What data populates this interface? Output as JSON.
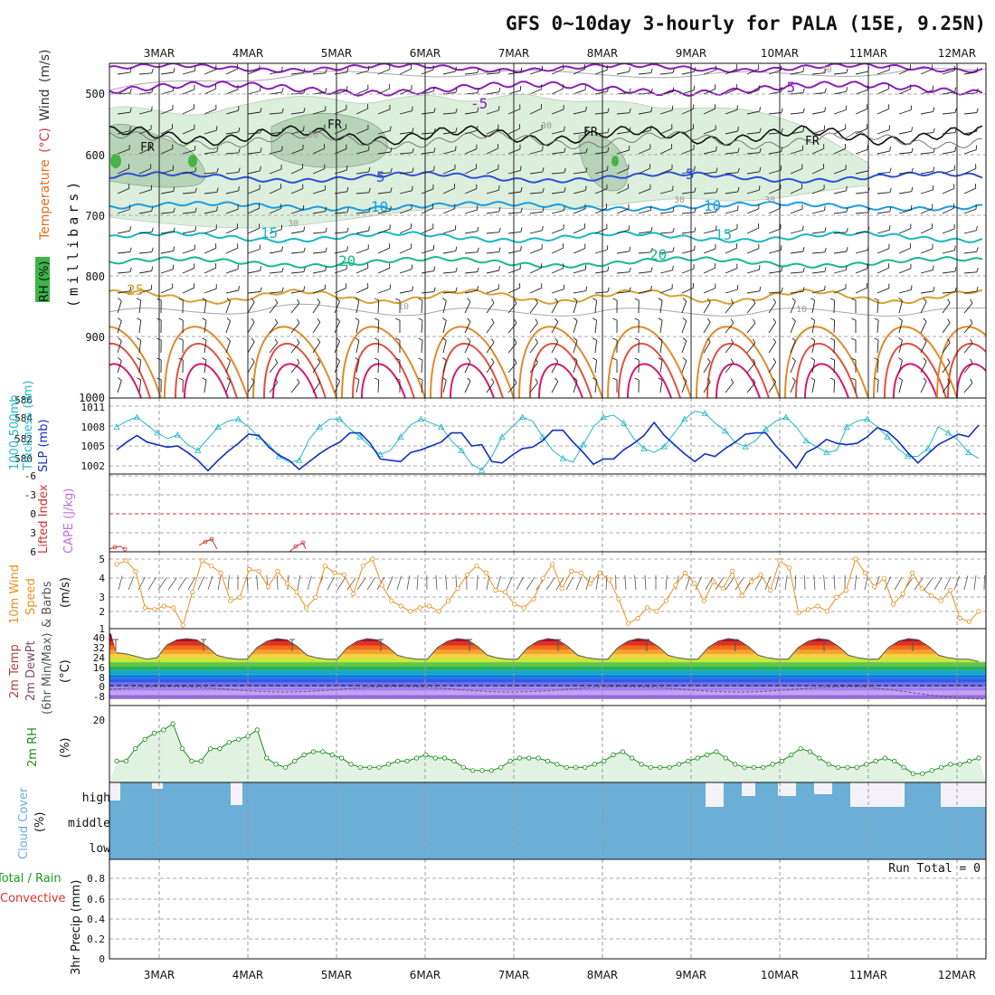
{
  "title": "GFS 0~10day 3-hourly for PALA (15E, 9.25N)",
  "dates": [
    "3MAR",
    "4MAR",
    "5MAR",
    "6MAR",
    "7MAR",
    "8MAR",
    "9MAR",
    "10MAR",
    "11MAR",
    "12MAR"
  ],
  "colors": {
    "slp": "#1030c0",
    "thickness": "#20b8c8",
    "wind": "#e8901c",
    "rh2m": "#1a8c1a",
    "cloud": "#6baed6",
    "lifted": "#d03030",
    "rh_fill": "#dcefdc"
  },
  "panels": {
    "upper": {
      "ylabels": [
        "Temperature",
        "(°C)",
        "Wind",
        "(m/s)"
      ],
      "rh_label": "RH (%)",
      "unit": "(millibars)",
      "yticks": [
        "500",
        "600",
        "700",
        "800",
        "900",
        "1000"
      ],
      "labels": {
        "fr1": "FR",
        "fr2": "FR",
        "fr3": "FR",
        "fr4": "FR",
        "m5a": "-5",
        "m5b": "-5",
        "p5a": "5",
        "p5b": "5",
        "p10a": "10",
        "p10b": "10",
        "p15a": "15",
        "p15b": "15",
        "p20a": "20",
        "p20b": "20",
        "p25": "25",
        "r30a": "30",
        "r30b": "30",
        "r30c": "30",
        "r30d": "30",
        "r30e": "30",
        "r10a": "10",
        "r10b": "10",
        "r10c": "10"
      }
    },
    "slp": {
      "label_left": "1000-500mb",
      "label_left2": "Thickness (dm)",
      "label_right": "SLP (mb)",
      "left_ticks": [
        "586",
        "584",
        "582",
        "580"
      ],
      "right_ticks": [
        "1011",
        "1008",
        "1005",
        "1002"
      ]
    },
    "cape": {
      "label_lifted": "Lifted Index",
      "label_cape": "CAPE (J/kg)",
      "ticks": [
        "-6",
        "-3",
        "0",
        "3",
        "6"
      ]
    },
    "wind": {
      "label1": "10m Wind",
      "label2": "Speed",
      "label3": "& Barbs",
      "unit": "(m/s)",
      "ticks": [
        "5",
        "4",
        "3",
        "2",
        "1"
      ]
    },
    "temp": {
      "label1": "2m Temp",
      "label2": "2m DewPt",
      "label3": "(6hr Min/Max)",
      "unit": "(°C)",
      "ticks": [
        "40",
        "32",
        "24",
        "16",
        "8",
        "0",
        "-8"
      ]
    },
    "rh": {
      "label": "2m RH",
      "unit": "(%)",
      "ticks": [
        "20"
      ]
    },
    "cloud": {
      "label": "Cloud Cover",
      "unit": "(%)",
      "levels": [
        "high",
        "middle",
        "low"
      ]
    },
    "precip": {
      "label1": "Total / Rain",
      "label2": "Convective",
      "label3": "3hr Precip (mm)",
      "run_total": "Run Total = 0",
      "ticks": [
        "0.8",
        "0.6",
        "0.4",
        "0.2",
        "0"
      ]
    }
  },
  "chart_data": [
    {
      "type": "line",
      "title": "1000-500mb Thickness (dm)",
      "series": [
        {
          "name": "1000-500mb Thickness (dm)",
          "y_units": "dm",
          "values": [
            583.6,
            584.2,
            584.6,
            583.8,
            583.0,
            582.4,
            582.8,
            581.8,
            581.2,
            582.4,
            583.6,
            584.2,
            584.4,
            583.6,
            582.6,
            581.8,
            580.6,
            580.0,
            580.2,
            582.4,
            583.6,
            584.4,
            584.4,
            583.4,
            582.6,
            581.6,
            580.8,
            581.2,
            582.6,
            583.8,
            584.4,
            584.0,
            583.6,
            582.2,
            581.2,
            579.8,
            579.2,
            580.6,
            582.6,
            583.6,
            584.6,
            584.2,
            582.6,
            581.2,
            580.4,
            580.0,
            581.8,
            583.6,
            584.6,
            584.8,
            584.0,
            582.4,
            581.4,
            581.0,
            581.6,
            583.0,
            584.4,
            585.2,
            585.0,
            584.0,
            583.2,
            582.0,
            581.6,
            582.2,
            583.4,
            584.2,
            584.6,
            583.6,
            582.2,
            581.6,
            581.0,
            581.2,
            583.6,
            584.2,
            584.4,
            583.6,
            582.6,
            581.4,
            580.6,
            580.6,
            581.4,
            583.6,
            583.0,
            582.2,
            581.0,
            580.4
          ]
        }
      ]
    },
    {
      "type": "line",
      "title": "SLP (mb)",
      "series": [
        {
          "name": "SLP (mb)",
          "y_units": "mb",
          "values": [
            1005.0,
            1006.2,
            1007.2,
            1006.2,
            1005.8,
            1005.4,
            1005.6,
            1004.6,
            1003.4,
            1001.8,
            1003.4,
            1004.8,
            1006.0,
            1007.4,
            1007.2,
            1005.4,
            1004.2,
            1003.4,
            1002.0,
            1003.2,
            1004.4,
            1005.4,
            1006.2,
            1007.6,
            1007.6,
            1006.0,
            1003.6,
            1003.4,
            1003.2,
            1004.6,
            1005.0,
            1005.6,
            1006.2,
            1007.6,
            1007.6,
            1005.6,
            1005.8,
            1003.2,
            1003.0,
            1004.2,
            1005.2,
            1005.4,
            1006.4,
            1008.0,
            1008.0,
            1006.2,
            1004.6,
            1002.8,
            1003.6,
            1003.6,
            1005.0,
            1006.0,
            1007.2,
            1009.2,
            1007.2,
            1005.8,
            1004.4,
            1003.2,
            1004.4,
            1004.0,
            1005.2,
            1006.2,
            1007.4,
            1007.6,
            1007.6,
            1005.6,
            1004.0,
            1002.2,
            1004.6,
            1005.4,
            1006.6,
            1006.0,
            1005.8,
            1006.0,
            1007.0,
            1008.4,
            1007.8,
            1006.4,
            1004.6,
            1003.0,
            1004.4,
            1005.8,
            1006.6,
            1007.4,
            1007.0,
            1008.8
          ]
        }
      ]
    },
    {
      "type": "line",
      "title": "10m Wind Speed (m/s)",
      "series": [
        {
          "name": "10m Wind Speed",
          "y_units": "m/s",
          "values": [
            4.7,
            4.9,
            4.3,
            2.2,
            2.1,
            2.3,
            2.2,
            1.2,
            3.1,
            4.9,
            4.6,
            4.2,
            2.6,
            2.8,
            4.4,
            4.3,
            3.4,
            4.3,
            3.6,
            3.1,
            2.2,
            2.8,
            4.6,
            4.2,
            4.1,
            3.0,
            4.6,
            5.0,
            3.5,
            2.6,
            2.3,
            2.0,
            2.2,
            2.3,
            2.0,
            2.6,
            3.3,
            4.1,
            4.6,
            4.2,
            3.2,
            3.1,
            2.4,
            2.2,
            2.7,
            3.9,
            4.7,
            3.3,
            4.3,
            4.2,
            3.6,
            4.2,
            3.8,
            2.7,
            1.3,
            1.6,
            2.2,
            2.0,
            2.6,
            3.5,
            4.2,
            3.6,
            2.6,
            3.7,
            3.3,
            4.3,
            2.9,
            3.7,
            4.1,
            3.2,
            4.9,
            4.5,
            1.9,
            2.1,
            2.3,
            2.0,
            2.8,
            3.2,
            5.0,
            4.2,
            3.4,
            3.9,
            2.4,
            3.0,
            4.2,
            3.3,
            2.9,
            2.6,
            3.2,
            1.6,
            1.4,
            2.0
          ]
        }
      ]
    },
    {
      "type": "line",
      "title": "2m RH (%)",
      "series": [
        {
          "name": "2m RH",
          "y_units": "%",
          "values": [
            8,
            8,
            12,
            15,
            17,
            18,
            20,
            12,
            8,
            8,
            12,
            12,
            14,
            15,
            16,
            18,
            9,
            7,
            6,
            8,
            10,
            11,
            11,
            10,
            9,
            7,
            6,
            6,
            6,
            7,
            8,
            8,
            9,
            10,
            9,
            9,
            8,
            6,
            5,
            5,
            5,
            6,
            8,
            9,
            9,
            9,
            8,
            7,
            6,
            6,
            6,
            7,
            8,
            10,
            11,
            9,
            7,
            6,
            6,
            6,
            7,
            8,
            9,
            10,
            11,
            9,
            7,
            6,
            6,
            6,
            7,
            8,
            10,
            12,
            11,
            9,
            7,
            6,
            6,
            6,
            7,
            8,
            9,
            8,
            6,
            4,
            4,
            5,
            6,
            7,
            7,
            8,
            9
          ]
        }
      ]
    },
    {
      "type": "area",
      "title": "2m Temp (°C)",
      "series": [
        {
          "name": "2m Temp",
          "y_units": "°C",
          "values": [
            29,
            28,
            26,
            24,
            25,
            35,
            39,
            40,
            39,
            34,
            27,
            25,
            24,
            24,
            33,
            38,
            40,
            39,
            34,
            27,
            25,
            24,
            24,
            33,
            38,
            40,
            39,
            34,
            27,
            25,
            24,
            24,
            33,
            38,
            40,
            39,
            34,
            27,
            25,
            24,
            24,
            33,
            38,
            40,
            39,
            34,
            27,
            25,
            24,
            24,
            33,
            38,
            40,
            39,
            34,
            27,
            25,
            24,
            24,
            33,
            38,
            40,
            39,
            34,
            27,
            25,
            24,
            24,
            33,
            38,
            40,
            39,
            34,
            27,
            25,
            24,
            24,
            33,
            38,
            40,
            39,
            34,
            27,
            25,
            24,
            24,
            22
          ]
        }
      ]
    },
    {
      "type": "bar",
      "title": "3hr Precip (mm)",
      "series": [
        {
          "name": "3hr Precip",
          "y_units": "mm",
          "values": []
        }
      ],
      "ylim": [
        0,
        0.8
      ]
    }
  ]
}
